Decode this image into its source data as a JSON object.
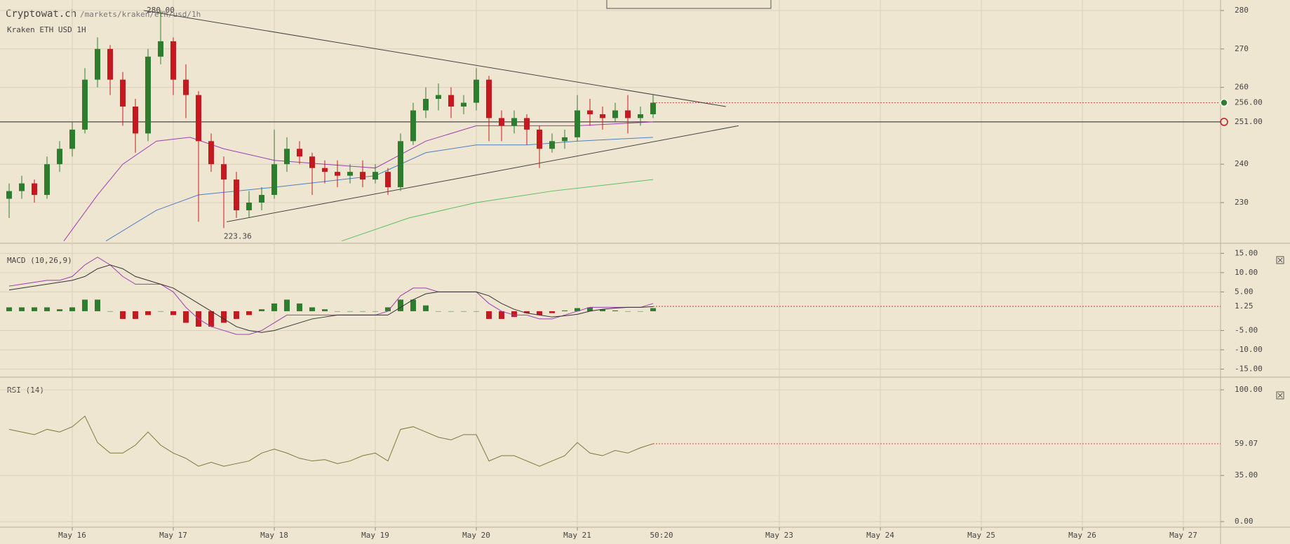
{
  "chart_data": [
    {
      "type": "candlestick",
      "site": "Cryptowat.ch",
      "path": "/markets/kraken/eth/usd/1h",
      "title": "Kraken ETH USD 1H",
      "xlim": [
        -17.17,
        272.83
      ],
      "ylim": [
        219.78,
        282.74
      ],
      "xticks": [
        {
          "value": 0,
          "label": "May 16"
        },
        {
          "value": 24,
          "label": "May 17"
        },
        {
          "value": 48,
          "label": "May 18"
        },
        {
          "value": 72,
          "label": "May 19"
        },
        {
          "value": 96,
          "label": "May 20"
        },
        {
          "value": 120,
          "label": "May 21"
        },
        {
          "value": 168,
          "label": "May 23"
        },
        {
          "value": 192,
          "label": "May 24"
        },
        {
          "value": 216,
          "label": "May 25"
        },
        {
          "value": 240,
          "label": "May 26"
        },
        {
          "value": 264,
          "label": "May 27"
        }
      ],
      "time_marker": {
        "value": 140,
        "label": "50:20"
      },
      "yticks": [
        230,
        240,
        260,
        270,
        280
      ],
      "last_price": {
        "value": 256,
        "label": "256.00"
      },
      "level_line": {
        "value": 251,
        "label": "251.00"
      },
      "up_color": "#2e7d2e",
      "down_color": "#c41a1f",
      "x": [
        -15,
        -12,
        -9,
        -6,
        -3,
        0,
        3,
        6,
        9,
        12,
        15,
        18,
        21,
        24,
        27,
        30,
        33,
        36,
        39,
        42,
        45,
        48,
        51,
        54,
        57,
        60,
        63,
        66,
        69,
        72,
        75,
        78,
        81,
        84,
        87,
        90,
        93,
        96,
        99,
        102,
        105,
        108,
        111,
        114,
        117,
        120,
        123,
        126,
        129,
        132,
        135,
        138
      ],
      "candles": [
        [
          231,
          235,
          226,
          233
        ],
        [
          233,
          237,
          231,
          235
        ],
        [
          235,
          236,
          230,
          232
        ],
        [
          232,
          242,
          231,
          240
        ],
        [
          240,
          246,
          238,
          244
        ],
        [
          244,
          251,
          242,
          249
        ],
        [
          249,
          265,
          248,
          262
        ],
        [
          262,
          273,
          260,
          270
        ],
        [
          270,
          271,
          258,
          262
        ],
        [
          262,
          264,
          250,
          255
        ],
        [
          255,
          257,
          243,
          248
        ],
        [
          248,
          270,
          246,
          268
        ],
        [
          268,
          280,
          266,
          272
        ],
        [
          272,
          273,
          258,
          262
        ],
        [
          262,
          266,
          252,
          258
        ],
        [
          258,
          259,
          225,
          246
        ],
        [
          246,
          248,
          238,
          240
        ],
        [
          240,
          242,
          223.36,
          236
        ],
        [
          236,
          238,
          226,
          228
        ],
        [
          228,
          233,
          226,
          230
        ],
        [
          230,
          234,
          228,
          232
        ],
        [
          232,
          249,
          231,
          240
        ],
        [
          240,
          247,
          238,
          244
        ],
        [
          244,
          246,
          240,
          242
        ],
        [
          242,
          243,
          232,
          239
        ],
        [
          239,
          241,
          235,
          238
        ],
        [
          238,
          241,
          234,
          237
        ],
        [
          237,
          240,
          235,
          238
        ],
        [
          238,
          241,
          234,
          236
        ],
        [
          236,
          240,
          235,
          238
        ],
        [
          238,
          239,
          232,
          234
        ],
        [
          234,
          248,
          233,
          246
        ],
        [
          246,
          256,
          245,
          254
        ],
        [
          254,
          260,
          252,
          257
        ],
        [
          257,
          261,
          254,
          258
        ],
        [
          258,
          260,
          252,
          255
        ],
        [
          255,
          258,
          253,
          256
        ],
        [
          256,
          265,
          254,
          262
        ],
        [
          262,
          263,
          246,
          252
        ],
        [
          252,
          254,
          246,
          250
        ],
        [
          250,
          254,
          248,
          252
        ],
        [
          252,
          253,
          245,
          249
        ],
        [
          249,
          250,
          239,
          244
        ],
        [
          244,
          248,
          243,
          246
        ],
        [
          246,
          249,
          244,
          247
        ],
        [
          247,
          258,
          246,
          254
        ],
        [
          254,
          257,
          250,
          253
        ],
        [
          253,
          255,
          249,
          252
        ],
        [
          252,
          256,
          251,
          254
        ],
        [
          254,
          258,
          248,
          252
        ],
        [
          252,
          255,
          250,
          253
        ],
        [
          253,
          258,
          252,
          256
        ]
      ],
      "overlays": [
        {
          "color": "#9b3fb0",
          "x": [
            -2,
            6,
            12,
            20,
            28,
            36,
            48,
            60,
            72,
            84,
            96,
            108,
            120,
            138
          ],
          "values": [
            220,
            232,
            240,
            246,
            247,
            244,
            241,
            240,
            239,
            246,
            250,
            250,
            250,
            251
          ]
        },
        {
          "color": "#4f7fc4",
          "x": [
            8,
            20,
            30,
            48,
            72,
            84,
            96,
            108,
            120,
            138
          ],
          "values": [
            220,
            228,
            232,
            234,
            237,
            243,
            245,
            245,
            246,
            247
          ]
        },
        {
          "color": "#5cbf5c",
          "x": [
            64,
            80,
            96,
            114,
            130,
            138
          ],
          "values": [
            220,
            226,
            230,
            233,
            235,
            236
          ]
        }
      ],
      "trendlines": [
        {
          "x": [
            17,
            155.3
          ],
          "values": [
            280,
            255
          ]
        },
        {
          "x": [
            36.7,
            158.3
          ],
          "values": [
            225,
            250
          ]
        }
      ],
      "annotations": [
        {
          "x": 21,
          "value": 280,
          "label": "280.00"
        },
        {
          "x": 36,
          "value": 223.36,
          "label": "223.36"
        }
      ]
    },
    {
      "type": "macd",
      "title": "MACD (10,26,9)",
      "ylim": [
        -16,
        16.7
      ],
      "yticks": [
        {
          "value": 15,
          "label": "15.00"
        },
        {
          "value": 10,
          "label": "10.00"
        },
        {
          "value": 5,
          "label": "5.00"
        },
        {
          "value": -5,
          "label": "-5.00"
        },
        {
          "value": -10,
          "label": "-10.00"
        },
        {
          "value": -15,
          "label": "-15.00"
        }
      ],
      "last": {
        "value": 1.25,
        "label": "1.25"
      },
      "up_color": "#2e7d2e",
      "down_color": "#c41a1f",
      "histogram": [
        1,
        1,
        1,
        1,
        0.5,
        1,
        3,
        3,
        0,
        -2,
        -2,
        -1,
        0,
        -1,
        -3,
        -4,
        -4,
        -3,
        -2,
        -1,
        0.5,
        2,
        3,
        2,
        1,
        0.5,
        0,
        0,
        0,
        0,
        1,
        3,
        3,
        1.5,
        0,
        0,
        0,
        0,
        -2,
        -2,
        -1.5,
        -0.5,
        -1,
        -0.5,
        0.2,
        0.8,
        1,
        0.5,
        0.2,
        0,
        0,
        0.8
      ],
      "series": [
        {
          "color": "#9b3fb0",
          "values": [
            6.5,
            7,
            7.5,
            8,
            8,
            9,
            12,
            14,
            12,
            9,
            7,
            7,
            7,
            5,
            1,
            -2,
            -4,
            -5,
            -6,
            -6,
            -5,
            -3,
            -1,
            -1,
            -1,
            -1,
            -1,
            -1,
            -1,
            -1,
            0,
            4,
            6,
            6,
            5,
            5,
            5,
            5,
            2,
            0,
            -1,
            -1,
            -2,
            -2,
            -1,
            0,
            1,
            1,
            1,
            1,
            1,
            2
          ]
        },
        {
          "color": "#333333",
          "values": [
            5.5,
            6,
            6.5,
            7,
            7.5,
            8,
            9,
            11,
            12,
            11,
            9,
            8,
            7,
            6,
            4,
            2,
            0,
            -2,
            -4,
            -5,
            -5.5,
            -5,
            -4,
            -3,
            -2,
            -1.5,
            -1,
            -1,
            -1,
            -1,
            -1,
            1,
            3,
            4.5,
            5,
            5,
            5,
            5,
            4,
            2,
            0.5,
            -0.5,
            -1,
            -1.5,
            -1.2,
            -0.8,
            0,
            0.5,
            0.8,
            1,
            1,
            1.2
          ]
        }
      ]
    },
    {
      "type": "rsi",
      "title": "RSI (14)",
      "ylim": [
        -3.2,
        105.9
      ],
      "yticks": [
        {
          "value": 100,
          "label": "100.00"
        },
        {
          "value": 35,
          "label": "35.00"
        },
        {
          "value": 0,
          "label": "0.00"
        }
      ],
      "last": {
        "value": 59.07,
        "label": "59.07"
      },
      "series": [
        {
          "color": "#7a7a3a",
          "values": [
            70,
            68,
            66,
            70,
            68,
            72,
            80,
            60,
            52,
            52,
            58,
            68,
            58,
            52,
            48,
            42,
            45,
            42,
            44,
            46,
            52,
            55,
            52,
            48,
            46,
            47,
            44,
            46,
            50,
            52,
            46,
            70,
            72,
            68,
            64,
            62,
            66,
            66,
            46,
            50,
            50,
            46,
            42,
            46,
            50,
            60,
            52,
            50,
            54,
            52,
            56,
            59.07
          ]
        }
      ]
    }
  ]
}
